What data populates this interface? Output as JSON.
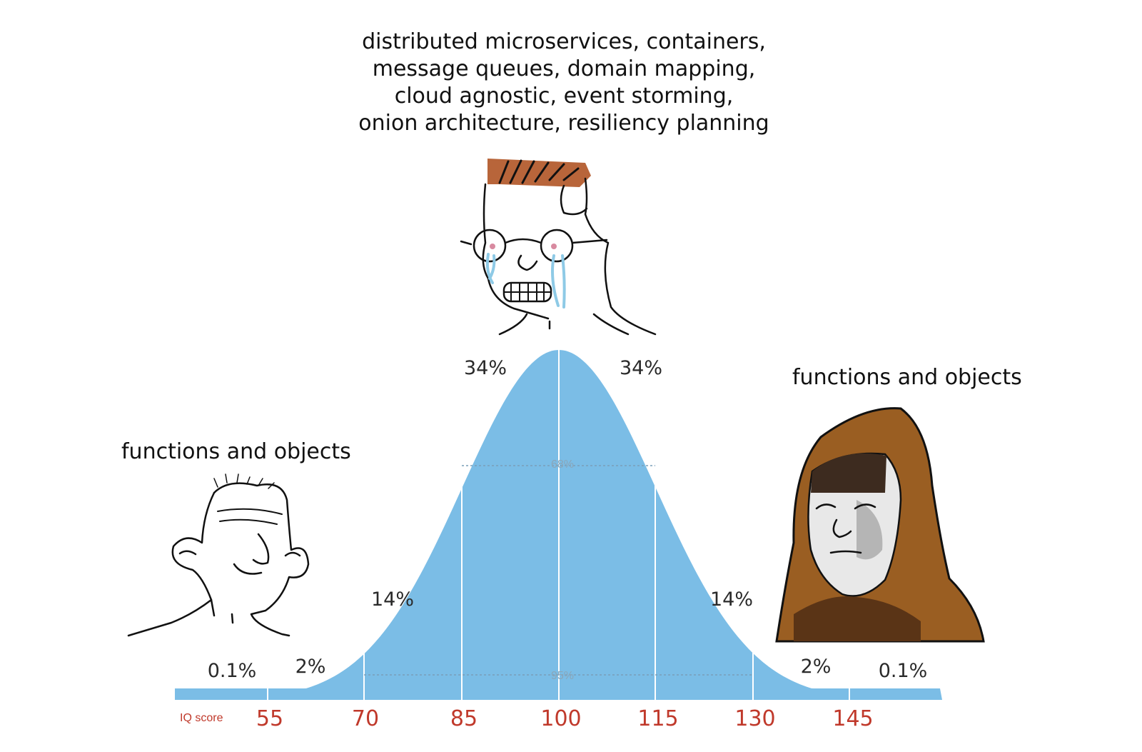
{
  "captions": {
    "top": [
      "distributed microservices, containers,",
      "message queues, domain mapping,",
      "cloud agnostic, event storming,",
      "onion architecture, resiliency planning"
    ],
    "left": "functions and objects",
    "right": "functions and objects"
  },
  "percent_labels": {
    "p34_left": "34%",
    "p34_right": "34%",
    "p14_left": "14%",
    "p14_right": "14%",
    "p2_left": "2%",
    "p2_right": "2%",
    "p01_left": "0.1%",
    "p01_right": "0.1%",
    "band68": "68%",
    "band95": "95%"
  },
  "axis": {
    "label": "IQ score",
    "ticks": [
      "55",
      "70",
      "85",
      "100",
      "115",
      "130",
      "145"
    ]
  },
  "colors": {
    "curve": "#7bbde6",
    "tick": "#c0392b",
    "hair_mid": "#b8653a",
    "hood": "#9a5e22",
    "tears": "#8ecae6"
  },
  "characters": {
    "left": "simple-wojak",
    "middle": "crying-nerd-wojak",
    "right": "hooded-monk-wojak"
  }
}
